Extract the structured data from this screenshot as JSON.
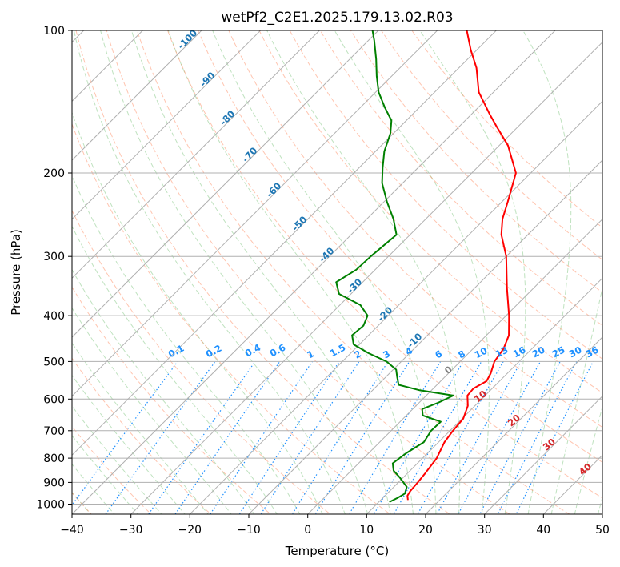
{
  "chart_data": {
    "type": "line",
    "diagram": "skew-T log-P",
    "title": "wetPf2_C2E1.2025.179.13.02.R03",
    "xlabel": "Temperature (°C)",
    "ylabel": "Pressure (hPa)",
    "xlim": [
      -40,
      50
    ],
    "ylim": [
      1050,
      100
    ],
    "y_scale": "log",
    "grid": true,
    "xticks": [
      -40,
      -30,
      -20,
      -10,
      0,
      10,
      20,
      30,
      40,
      50
    ],
    "yticks": [
      1000,
      900,
      800,
      700,
      600,
      500,
      400,
      300,
      200,
      100
    ],
    "series": [
      {
        "role": "temperature",
        "color": "#ff0000",
        "points": [
          {
            "p": 980,
            "t": 14.6
          },
          {
            "p": 960,
            "t": 13.8
          },
          {
            "p": 940,
            "t": 13.5
          },
          {
            "p": 900,
            "t": 13.3
          },
          {
            "p": 860,
            "t": 13.0
          },
          {
            "p": 800,
            "t": 12.4
          },
          {
            "p": 740,
            "t": 11.0
          },
          {
            "p": 700,
            "t": 10.5
          },
          {
            "p": 660,
            "t": 10.2
          },
          {
            "p": 620,
            "t": 8.8
          },
          {
            "p": 590,
            "t": 7.0
          },
          {
            "p": 570,
            "t": 6.8
          },
          {
            "p": 550,
            "t": 7.8
          },
          {
            "p": 530,
            "t": 7.2
          },
          {
            "p": 500,
            "t": 5.8
          },
          {
            "p": 470,
            "t": 5.2
          },
          {
            "p": 440,
            "t": 3.8
          },
          {
            "p": 400,
            "t": 0.5
          },
          {
            "p": 350,
            "t": -4.5
          },
          {
            "p": 300,
            "t": -10.0
          },
          {
            "p": 270,
            "t": -14.5
          },
          {
            "p": 250,
            "t": -17.0
          },
          {
            "p": 230,
            "t": -19.0
          },
          {
            "p": 200,
            "t": -22.5
          },
          {
            "p": 175,
            "t": -28.5
          },
          {
            "p": 160,
            "t": -33.5
          },
          {
            "p": 150,
            "t": -37.0
          },
          {
            "p": 135,
            "t": -42.5
          },
          {
            "p": 120,
            "t": -47.0
          },
          {
            "p": 110,
            "t": -51.0
          },
          {
            "p": 100,
            "t": -55.0
          }
        ]
      },
      {
        "role": "dewpoint",
        "color": "#008000",
        "points": [
          {
            "p": 990,
            "t": 11.8
          },
          {
            "p": 970,
            "t": 12.5
          },
          {
            "p": 950,
            "t": 13.0
          },
          {
            "p": 920,
            "t": 12.2
          },
          {
            "p": 880,
            "t": 9.5
          },
          {
            "p": 850,
            "t": 7.2
          },
          {
            "p": 820,
            "t": 5.8
          },
          {
            "p": 780,
            "t": 6.4
          },
          {
            "p": 740,
            "t": 7.5
          },
          {
            "p": 700,
            "t": 6.8
          },
          {
            "p": 670,
            "t": 6.9
          },
          {
            "p": 650,
            "t": 2.8
          },
          {
            "p": 630,
            "t": 1.6
          },
          {
            "p": 610,
            "t": 3.3
          },
          {
            "p": 590,
            "t": 4.6
          },
          {
            "p": 575,
            "t": -2.0
          },
          {
            "p": 560,
            "t": -6.5
          },
          {
            "p": 540,
            "t": -8.0
          },
          {
            "p": 520,
            "t": -9.5
          },
          {
            "p": 500,
            "t": -12.5
          },
          {
            "p": 480,
            "t": -17.0
          },
          {
            "p": 460,
            "t": -21.0
          },
          {
            "p": 440,
            "t": -22.8
          },
          {
            "p": 420,
            "t": -22.5
          },
          {
            "p": 400,
            "t": -23.5
          },
          {
            "p": 380,
            "t": -26.5
          },
          {
            "p": 360,
            "t": -32.0
          },
          {
            "p": 340,
            "t": -34.5
          },
          {
            "p": 320,
            "t": -33.2
          },
          {
            "p": 300,
            "t": -33.0
          },
          {
            "p": 270,
            "t": -32.3
          },
          {
            "p": 250,
            "t": -35.5
          },
          {
            "p": 230,
            "t": -39.5
          },
          {
            "p": 210,
            "t": -43.5
          },
          {
            "p": 195,
            "t": -46.0
          },
          {
            "p": 180,
            "t": -48.5
          },
          {
            "p": 165,
            "t": -50.5
          },
          {
            "p": 155,
            "t": -52.5
          },
          {
            "p": 145,
            "t": -56.0
          },
          {
            "p": 135,
            "t": -59.5
          },
          {
            "p": 125,
            "t": -62.5
          },
          {
            "p": 115,
            "t": -65.5
          },
          {
            "p": 105,
            "t": -69.0
          },
          {
            "p": 100,
            "t": -71.0
          }
        ]
      }
    ],
    "dry_adiabat_labels": [
      "-100",
      "-90",
      "-80",
      "-70",
      "-60",
      "-50",
      "-40",
      "-30",
      "-20",
      "-10"
    ],
    "mixing_ratio_labels": [
      "0.1",
      "0.2",
      "0.4",
      "0.6",
      "1",
      "1.5",
      "2",
      "3",
      "4",
      "6",
      "8",
      "10",
      "13",
      "16",
      "20",
      "25",
      "30",
      "36"
    ],
    "moist_adiabat_labels": [
      "0",
      "10",
      "20",
      "30",
      "40"
    ],
    "colors": {
      "temperature": "#ff0000",
      "dewpoint": "#008000",
      "dry_adiabat_labels": "#1f77b4",
      "mixing_ratio_labels": "#1e90ff",
      "moist_adiabat_labels_warm": "#d62728",
      "moist_adiabat_label_zero": "#808080"
    }
  }
}
